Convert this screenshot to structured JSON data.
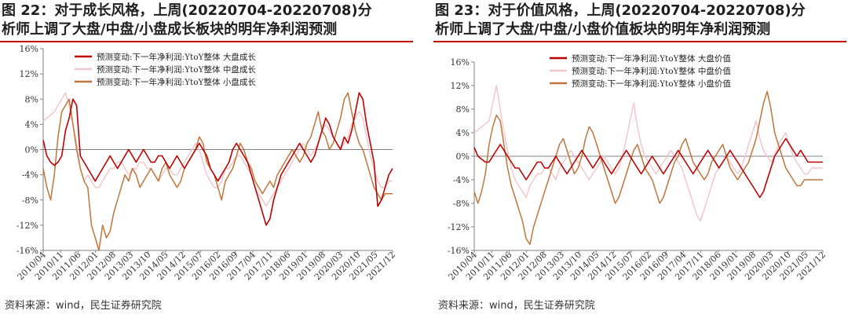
{
  "charts": [
    {
      "title_line1": "图 22：对于成长风格，上周(20220704-20220708)分",
      "title_line2": "析师上调了大盘/中盘/小盘成长板块的明年净利润预测",
      "source": "资料来源：wind，民生证券研究院"
    },
    {
      "title_line1": "图 23：对于价值风格，上周(20220704-20220708)分",
      "title_line2": "析师上调了大盘/中盘/小盘价值板块的明年净利润预测",
      "source": "资料来源：wind，民生证券研究院"
    }
  ],
  "chart_data": [
    {
      "type": "line",
      "title": "",
      "xlabel": "",
      "ylabel": "",
      "ylim": [
        -16,
        16
      ],
      "yticks": [
        16,
        12,
        8,
        4,
        0,
        -4,
        -8,
        -12,
        -16
      ],
      "ytick_labels": [
        "16%",
        "12%",
        "8%",
        "4%",
        "0%",
        "-4%",
        "-8%",
        "-12%",
        "-16%"
      ],
      "x_tick_labels": [
        "2010/04",
        "2010/11",
        "2011/06",
        "2012/01",
        "2012/08",
        "2013/03",
        "2013/10",
        "2014/05",
        "2014/12",
        "2015/07",
        "2016/02",
        "2016/09",
        "2017/04",
        "2017/11",
        "2018/06",
        "2019/01",
        "2019/08",
        "2020/03",
        "2020/10",
        "2021/05",
        "2021/12"
      ],
      "legend_position": "top-right",
      "grid": false,
      "series": [
        {
          "name": "预测变动:下一年净利润:YtoY整体 大盘成长",
          "color": "#c00000",
          "values": [
            1.5,
            -1,
            -2,
            -2.5,
            -2,
            -1,
            3,
            5,
            8,
            7,
            -1,
            -2,
            -3,
            -4,
            -5,
            -4,
            -3,
            -2,
            -1,
            -2,
            -3,
            -2,
            -1,
            0,
            -1,
            -2,
            -1,
            0,
            -1,
            -2,
            -2,
            -1,
            -1,
            -2,
            -3,
            -2,
            -1,
            -2,
            -3,
            -2,
            -1,
            0,
            1,
            0,
            -1,
            -3,
            -4,
            -5,
            -4,
            -3,
            -2,
            0,
            1,
            0,
            -1,
            -2,
            -4,
            -6,
            -8,
            -10,
            -12,
            -11,
            -8,
            -6,
            -4,
            -3,
            -2,
            -1,
            0,
            1,
            0,
            -1,
            -2,
            -1,
            1,
            3,
            5,
            4,
            2,
            1,
            0,
            2,
            1,
            3,
            6,
            9,
            8,
            4,
            1,
            -2,
            -9,
            -8,
            -6,
            -4,
            -3
          ]
        },
        {
          "name": "预测变动:下一年净利润:YtoY整体 中盘成长",
          "color": "#f2c7cc",
          "values": [
            4.5,
            5,
            5.5,
            6,
            7,
            8,
            9,
            7,
            4,
            1,
            -3,
            -5,
            -4,
            -5,
            -6,
            -6,
            -5,
            -4,
            -3,
            -3,
            -2,
            -2,
            -3,
            -4,
            -3,
            -3,
            -2,
            -2,
            -3,
            -3,
            -4,
            -5,
            -4,
            -3,
            -3,
            -4,
            -4,
            -3,
            -2,
            -1,
            0,
            1,
            0,
            -2,
            -4,
            -5,
            -6,
            -6,
            -5,
            -3,
            -3,
            -2,
            -1,
            -1,
            -2,
            -3,
            -4,
            -6,
            -7,
            -8,
            -9,
            -8,
            -7,
            -6,
            -5,
            -4,
            -3,
            -2,
            -1,
            0,
            1,
            0,
            -1,
            0,
            1,
            3,
            4,
            3,
            2,
            1,
            0,
            1,
            2,
            4,
            5,
            6,
            5,
            2,
            -1,
            -3,
            -5,
            -6,
            -6,
            -5,
            -5
          ]
        },
        {
          "name": "预测变动:下一年净利润:YtoY整体 小盘成长",
          "color": "#c0753a",
          "values": [
            -3,
            -6,
            -8,
            -4,
            2,
            6,
            7,
            8,
            4,
            0,
            -3,
            -5,
            -6,
            -12,
            -14,
            -16,
            -12,
            -14,
            -13,
            -10,
            -8,
            -6,
            -4,
            -5,
            -3,
            -4,
            -6,
            -5,
            -4,
            -3,
            -4,
            -5,
            -3,
            -2,
            -4,
            -5,
            -6,
            -5,
            -3,
            -2,
            -1,
            0,
            2,
            1,
            -2,
            -3,
            -4,
            -6,
            -8,
            -5,
            -4,
            -3,
            -1,
            1,
            0,
            -2,
            -3,
            -5,
            -6,
            -7,
            -6,
            -5,
            -6,
            -4,
            -3,
            -2,
            -1,
            0,
            -1,
            -2,
            -1,
            1,
            2,
            4,
            6,
            3,
            2,
            0,
            1,
            3,
            5,
            8,
            9,
            6,
            3,
            1,
            0,
            -2,
            -4,
            -6,
            -7,
            -8,
            -7,
            -7,
            -7
          ]
        }
      ]
    },
    {
      "type": "line",
      "title": "",
      "xlabel": "",
      "ylabel": "",
      "ylim": [
        -16,
        16
      ],
      "yticks": [
        16,
        12,
        8,
        4,
        0,
        -4,
        -8,
        -12,
        -16
      ],
      "ytick_labels": [
        "16%",
        "12%",
        "8%",
        "4%",
        "0%",
        "-4%",
        "-8%",
        "-12%",
        "-16%"
      ],
      "x_tick_labels": [
        "2010/04",
        "2010/11",
        "2011/06",
        "2012/01",
        "2012/08",
        "2013/03",
        "2013/10",
        "2014/05",
        "2014/12",
        "2015/07",
        "2016/02",
        "2016/09",
        "2017/04",
        "2017/11",
        "2018/06",
        "2019/01",
        "2019/08",
        "2020/03",
        "2020/10",
        "2021/05",
        "2021/12"
      ],
      "legend_position": "top-center",
      "grid": false,
      "series": [
        {
          "name": "预测变动:下一年净利润:YtoY整体 大盘价值",
          "color": "#c00000",
          "values": [
            1.5,
            0,
            -0.5,
            -1,
            -1,
            0,
            1,
            2,
            1,
            0,
            -1,
            -2,
            -2,
            -3,
            -4,
            -3,
            -2,
            -1,
            -1,
            -2,
            -2,
            -1,
            0,
            -1,
            -2,
            -3,
            -2,
            -1,
            0,
            1,
            0,
            -1,
            -2,
            -1,
            0,
            -1,
            -2,
            -3,
            -2,
            -1,
            0,
            1,
            0,
            -1,
            -2,
            -3,
            -2,
            -1,
            0,
            -1,
            -2,
            -3,
            -2,
            -1,
            0,
            1,
            0,
            -1,
            -2,
            -3,
            -2,
            -1,
            0,
            1,
            0,
            -1,
            -2,
            -1,
            0,
            1,
            0,
            -1,
            -2,
            -3,
            -4,
            -5,
            -6,
            -7,
            -6,
            -4,
            -2,
            0,
            1,
            2,
            3,
            2,
            1,
            0,
            1,
            0,
            -1,
            -1,
            -1,
            -1,
            -1
          ]
        },
        {
          "name": "预测变动:下一年净利润:YtoY整体 中盘价值",
          "color": "#f2c7cc",
          "values": [
            4,
            4.5,
            5,
            5.5,
            6,
            9,
            12,
            8,
            4,
            1,
            -2,
            -4,
            -5,
            -6,
            -7,
            -5,
            -4,
            -3,
            -3,
            -2,
            -2,
            -3,
            -4,
            -2,
            -1,
            0,
            1,
            0,
            -1,
            -2,
            -3,
            -4,
            -3,
            -2,
            -1,
            0,
            -1,
            -2,
            -3,
            -2,
            0,
            3,
            6,
            9,
            5,
            2,
            0,
            -1,
            -2,
            -3,
            -2,
            -1,
            0,
            1,
            0,
            -1,
            -2,
            -4,
            -6,
            -8,
            -10,
            -11,
            -9,
            -7,
            -5,
            -3,
            -2,
            -1,
            0,
            -1,
            -2,
            -3,
            -2,
            0,
            2,
            4,
            6,
            3,
            1,
            0,
            -1,
            0,
            2,
            3,
            4,
            2,
            0,
            -1,
            -2,
            -3,
            -3,
            -2,
            -2,
            -2,
            -2
          ]
        },
        {
          "name": "预测变动:下一年净利润:YtoY整体 小盘价值",
          "color": "#c0753a",
          "values": [
            -6,
            -8,
            -6,
            -3,
            2,
            5,
            7,
            6,
            2,
            -2,
            -5,
            -7,
            -9,
            -11,
            -14,
            -15,
            -12,
            -10,
            -8,
            -6,
            -4,
            -2,
            0,
            2,
            3,
            1,
            -1,
            -3,
            -2,
            0,
            3,
            5,
            4,
            2,
            0,
            -2,
            -4,
            -6,
            -8,
            -7,
            -5,
            -3,
            -1,
            1,
            2,
            0,
            -2,
            -3,
            -4,
            -6,
            -8,
            -7,
            -5,
            -3,
            -1,
            0,
            2,
            3,
            1,
            -1,
            -2,
            -3,
            -4,
            -3,
            -1,
            0,
            1,
            2,
            0,
            -2,
            -3,
            -4,
            -3,
            -2,
            -1,
            1,
            3,
            6,
            9,
            11,
            8,
            4,
            2,
            0,
            -2,
            -3,
            -4,
            -5,
            -5,
            -4,
            -4,
            -4,
            -4,
            -4,
            -4
          ]
        }
      ]
    }
  ]
}
